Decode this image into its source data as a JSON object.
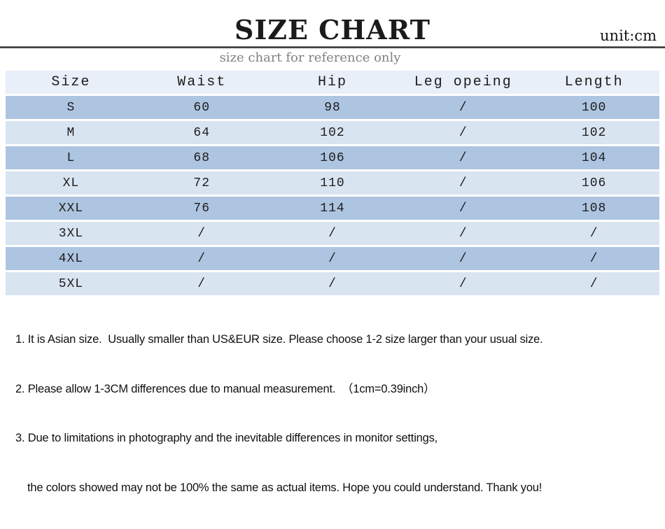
{
  "chart_data": {
    "type": "table",
    "title": "SIZE CHART",
    "unit_label": "unit:cm",
    "subtitle": "size chart for reference only",
    "columns": [
      "Size",
      "Waist",
      "Hip",
      "Leg opeing",
      "Length"
    ],
    "rows": [
      [
        "S",
        "60",
        "98",
        "/",
        "100"
      ],
      [
        "M",
        "64",
        "102",
        "/",
        "102"
      ],
      [
        "L",
        "68",
        "106",
        "/",
        "104"
      ],
      [
        "XL",
        "72",
        "110",
        "/",
        "106"
      ],
      [
        "XXL",
        "76",
        "114",
        "/",
        "108"
      ],
      [
        "3XL",
        "/",
        "/",
        "/",
        "/"
      ],
      [
        "4XL",
        "/",
        "/",
        "/",
        "/"
      ],
      [
        "5XL",
        "/",
        "/",
        "/",
        "/"
      ]
    ]
  },
  "notes": [
    "1. It is Asian size.  Usually smaller than US&EUR size. Please choose 1-2 size larger than your usual size.",
    "2. Please allow 1-3CM differences due to manual measurement.  （1cm=0.39inch）",
    "3. Due to limitations in photography and the inevitable differences in monitor settings,",
    "the colors showed may not be 100% the same as actual items. Hope you could understand. Thank you!"
  ],
  "colors": {
    "row_medium_blue": "#aec5e1",
    "row_light_blue": "#d9e4f1",
    "header_row_blue": "#e9eff8",
    "divider_gray": "#424242",
    "subtitle_gray": "#7e8184",
    "text_black": "#1c1c1c"
  }
}
